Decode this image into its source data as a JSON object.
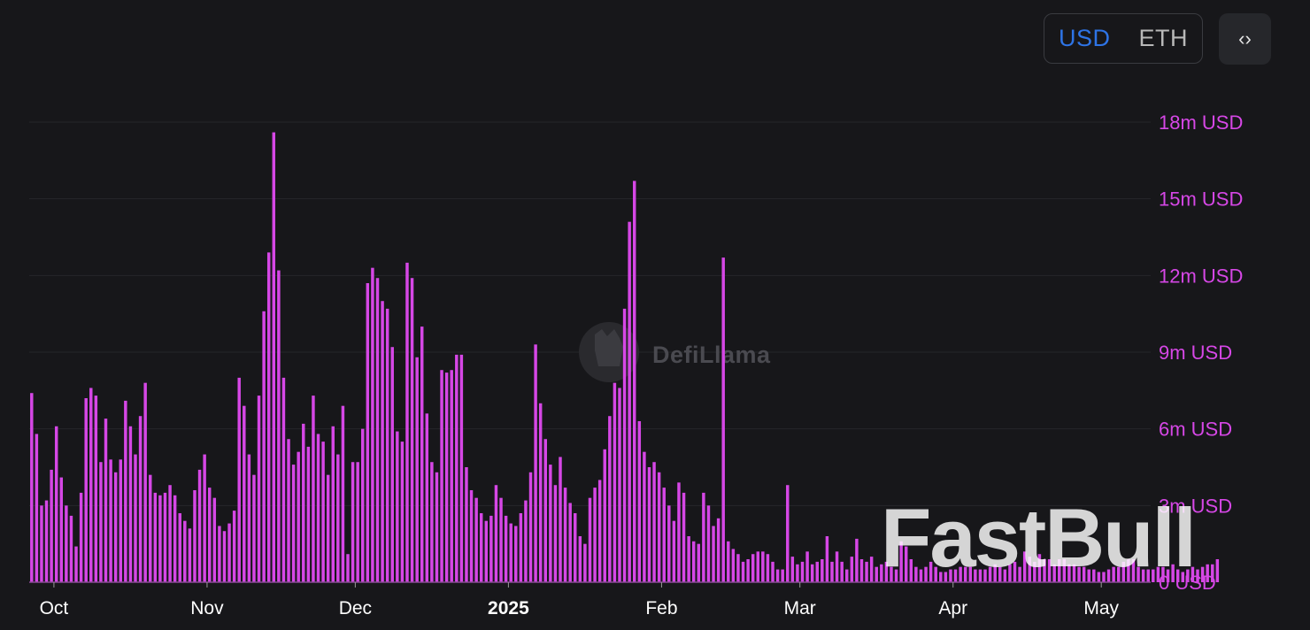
{
  "currency_toggle": {
    "usd": "USD",
    "eth": "ETH",
    "selected": "USD"
  },
  "embed_icon": "code-brackets-icon",
  "watermark": {
    "defillama": "DefiLlama",
    "fastbull": "FastBull"
  },
  "colors": {
    "background": "#17171a",
    "bar": "#d647e6",
    "axis_label": "#d647e6",
    "usd_selected": "#2e74e6",
    "eth": "#b8b8b8",
    "grid": "#26272b",
    "x_label": "#ffffff"
  },
  "chart_data": {
    "type": "bar",
    "title": "",
    "xlabel": "",
    "ylabel": "",
    "ylim": [
      0,
      18000000
    ],
    "y_ticks": [
      {
        "value": 0,
        "label": "0 USD"
      },
      {
        "value": 3000000,
        "label": "3m USD"
      },
      {
        "value": 6000000,
        "label": "6m USD"
      },
      {
        "value": 9000000,
        "label": "9m USD"
      },
      {
        "value": 12000000,
        "label": "12m USD"
      },
      {
        "value": 15000000,
        "label": "15m USD"
      },
      {
        "value": 18000000,
        "label": "18m USD"
      }
    ],
    "x_range": [
      "2024-09-26",
      "2025-05-11"
    ],
    "x_ticks": [
      {
        "date": "2024-10-01",
        "label": "Oct",
        "bold": false
      },
      {
        "date": "2024-11-01",
        "label": "Nov",
        "bold": false
      },
      {
        "date": "2024-12-01",
        "label": "Dec",
        "bold": false
      },
      {
        "date": "2025-01-01",
        "label": "2025",
        "bold": true
      },
      {
        "date": "2025-02-01",
        "label": "Feb",
        "bold": false
      },
      {
        "date": "2025-03-01",
        "label": "Mar",
        "bold": false
      },
      {
        "date": "2025-04-01",
        "label": "Apr",
        "bold": false
      },
      {
        "date": "2025-05-01",
        "label": "May",
        "bold": false
      }
    ],
    "grid": true,
    "series": [
      {
        "name": "",
        "start_date": "2024-09-26",
        "interval": "1 day",
        "values": [
          7.4,
          5.8,
          3.0,
          3.2,
          4.4,
          6.1,
          4.1,
          3.0,
          2.6,
          1.4,
          3.5,
          7.2,
          7.6,
          7.3,
          4.7,
          6.4,
          4.8,
          4.3,
          4.8,
          7.1,
          6.1,
          5.0,
          6.5,
          7.8,
          4.2,
          3.5,
          3.4,
          3.5,
          3.8,
          3.4,
          2.7,
          2.4,
          2.1,
          3.6,
          4.4,
          5.0,
          3.7,
          3.3,
          2.2,
          2.0,
          2.3,
          2.8,
          8.0,
          6.9,
          5.0,
          4.2,
          7.3,
          10.6,
          12.9,
          17.6,
          12.2,
          8.0,
          5.6,
          4.6,
          5.1,
          6.2,
          5.3,
          7.3,
          5.8,
          5.5,
          4.2,
          6.1,
          5.0,
          6.9,
          1.1,
          4.7,
          4.7,
          6.0,
          11.7,
          12.3,
          11.9,
          11.0,
          10.7,
          9.2,
          5.9,
          5.5,
          12.5,
          11.9,
          8.8,
          10.0,
          6.6,
          4.7,
          4.3,
          8.3,
          8.2,
          8.3,
          8.9,
          8.9,
          4.5,
          3.6,
          3.3,
          2.7,
          2.4,
          2.6,
          3.8,
          3.3,
          2.6,
          2.3,
          2.2,
          2.7,
          3.2,
          4.3,
          9.3,
          7.0,
          5.6,
          4.6,
          3.8,
          4.9,
          3.7,
          3.1,
          2.7,
          1.8,
          1.5,
          3.3,
          3.7,
          4.0,
          5.2,
          6.5,
          7.8,
          7.6,
          10.7,
          14.1,
          15.7,
          6.3,
          5.1,
          4.5,
          4.7,
          4.3,
          3.7,
          3.0,
          2.4,
          3.9,
          3.5,
          1.8,
          1.6,
          1.5,
          3.5,
          3.0,
          2.2,
          2.5,
          12.7,
          1.6,
          1.3,
          1.1,
          0.8,
          0.9,
          1.1,
          1.2,
          1.2,
          1.1,
          0.8,
          0.5,
          0.5,
          3.8,
          1.0,
          0.7,
          0.8,
          1.2,
          0.7,
          0.8,
          0.9,
          1.8,
          0.8,
          1.2,
          0.8,
          0.5,
          1.0,
          1.7,
          0.9,
          0.8,
          1.0,
          0.6,
          0.7,
          0.8,
          0.6,
          0.5,
          1.6,
          1.4,
          0.9,
          0.6,
          0.5,
          0.6,
          0.8,
          0.6,
          0.4,
          0.4,
          0.5,
          0.5,
          0.6,
          0.6,
          0.6,
          0.5,
          0.5,
          0.5,
          0.6,
          0.7,
          0.6,
          0.5,
          0.7,
          0.8,
          0.6,
          1.2,
          1.0,
          0.8,
          1.1,
          0.9,
          0.9,
          0.7,
          0.9,
          0.9,
          0.7,
          0.7,
          0.6,
          0.6,
          0.5,
          0.5,
          0.4,
          0.4,
          0.5,
          0.6,
          0.6,
          0.8,
          0.9,
          0.9,
          0.6,
          0.5,
          0.5,
          0.5,
          0.6,
          0.6,
          0.5,
          0.7,
          0.5,
          0.4,
          0.5,
          0.6,
          0.5,
          0.6,
          0.7,
          0.7,
          0.9
        ]
      }
    ],
    "value_unit_multiplier": 1000000
  }
}
